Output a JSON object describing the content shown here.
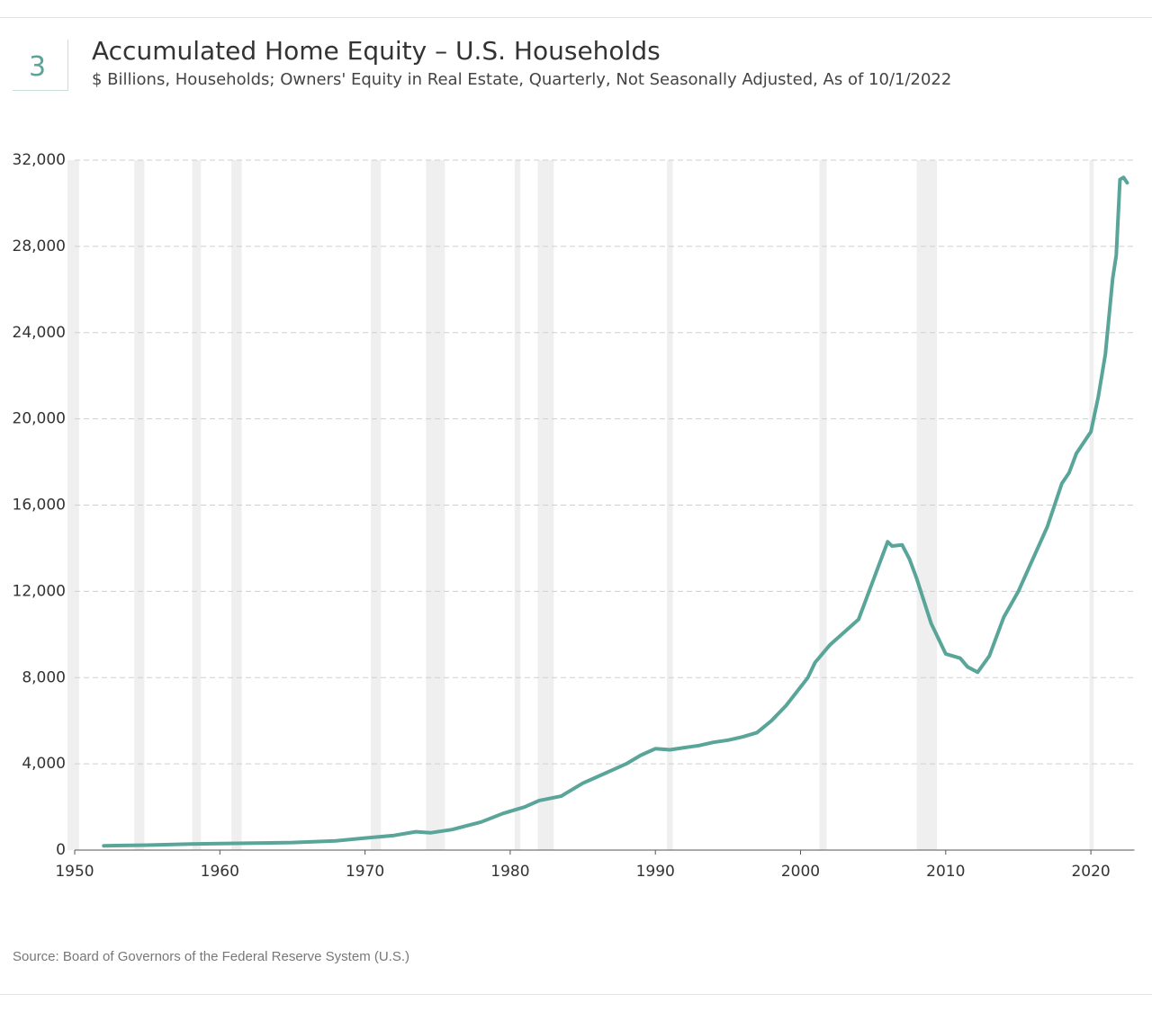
{
  "chart_data": {
    "type": "line",
    "number": "3",
    "title": "Accumulated Home Equity – U.S. Households",
    "subtitle": "$ Billions, Households; Owners' Equity in Real Estate, Quarterly, Not Seasonally Adjusted, As of 10/1/2022",
    "source": "Source: Board of Governors of the Federal Reserve System (U.S.)",
    "xlim": [
      1950,
      2023
    ],
    "xticks": [
      1950,
      1960,
      1970,
      1980,
      1990,
      2000,
      2010,
      2020
    ],
    "ylim": [
      0,
      32000
    ],
    "yticks": [
      0,
      {
        "value": 4000,
        "label": "4,000"
      },
      {
        "value": 8000,
        "label": "8,000"
      },
      {
        "value": 12000,
        "label": "12,000"
      },
      {
        "value": 16000,
        "label": "16,000"
      },
      {
        "value": 20000,
        "label": "20,000"
      },
      {
        "value": 24000,
        "label": "24,000"
      },
      {
        "value": 28000,
        "label": "28,000"
      },
      {
        "value": 32000,
        "label": "32,000"
      }
    ],
    "grid": true,
    "recession_color": "#efefef",
    "recessions": [
      [
        1949.5,
        1950.3
      ],
      [
        1954.1,
        1954.8
      ],
      [
        1958.1,
        1958.7
      ],
      [
        1960.8,
        1961.5
      ],
      [
        1970.4,
        1971.1
      ],
      [
        1974.2,
        1975.5
      ],
      [
        1980.3,
        1980.7
      ],
      [
        1981.9,
        1983.0
      ],
      [
        1990.8,
        1991.2
      ],
      [
        2001.3,
        2001.8
      ],
      [
        2008.0,
        2009.4
      ],
      [
        2019.9,
        2020.2
      ]
    ],
    "x": [
      1952,
      1955,
      1958,
      1960,
      1963,
      1965,
      1968,
      1970,
      1972,
      1973.5,
      1974.5,
      1976,
      1978,
      1979.5,
      1981,
      1982,
      1983.5,
      1984,
      1985,
      1986,
      1987,
      1988,
      1989,
      1990,
      1991,
      1992,
      1993,
      1994,
      1995,
      1996,
      1997,
      1998,
      1999,
      2000.5,
      2001,
      2002,
      2003,
      2004,
      2005,
      2006,
      2006.3,
      2007,
      2007.5,
      2008,
      2009,
      2010,
      2010.5,
      2011,
      2011.5,
      2012.2,
      2013,
      2014,
      2015,
      2016,
      2017,
      2018,
      2018.5,
      2019,
      2020,
      2020.5,
      2021,
      2021.5,
      2021.75,
      2022,
      2022.25,
      2022.5
    ],
    "series": [
      {
        "name": "Owners' Equity in Real Estate",
        "color": "#5aa59a",
        "values": [
          200,
          230,
          280,
          300,
          330,
          350,
          430,
          560,
          680,
          850,
          800,
          950,
          1300,
          1700,
          2000,
          2300,
          2500,
          2700,
          3100,
          3400,
          3700,
          4000,
          4400,
          4700,
          4650,
          4750,
          4850,
          5000,
          5100,
          5250,
          5450,
          6000,
          6700,
          8000,
          8700,
          9500,
          10100,
          10700,
          12500,
          14300,
          14100,
          14150,
          13500,
          12600,
          10500,
          9100,
          9000,
          8900,
          8500,
          8250,
          9000,
          10800,
          12000,
          13500,
          15000,
          17000,
          17500,
          18400,
          19400,
          21000,
          23000,
          26500,
          27600,
          31100,
          31200,
          30950
        ]
      }
    ]
  }
}
